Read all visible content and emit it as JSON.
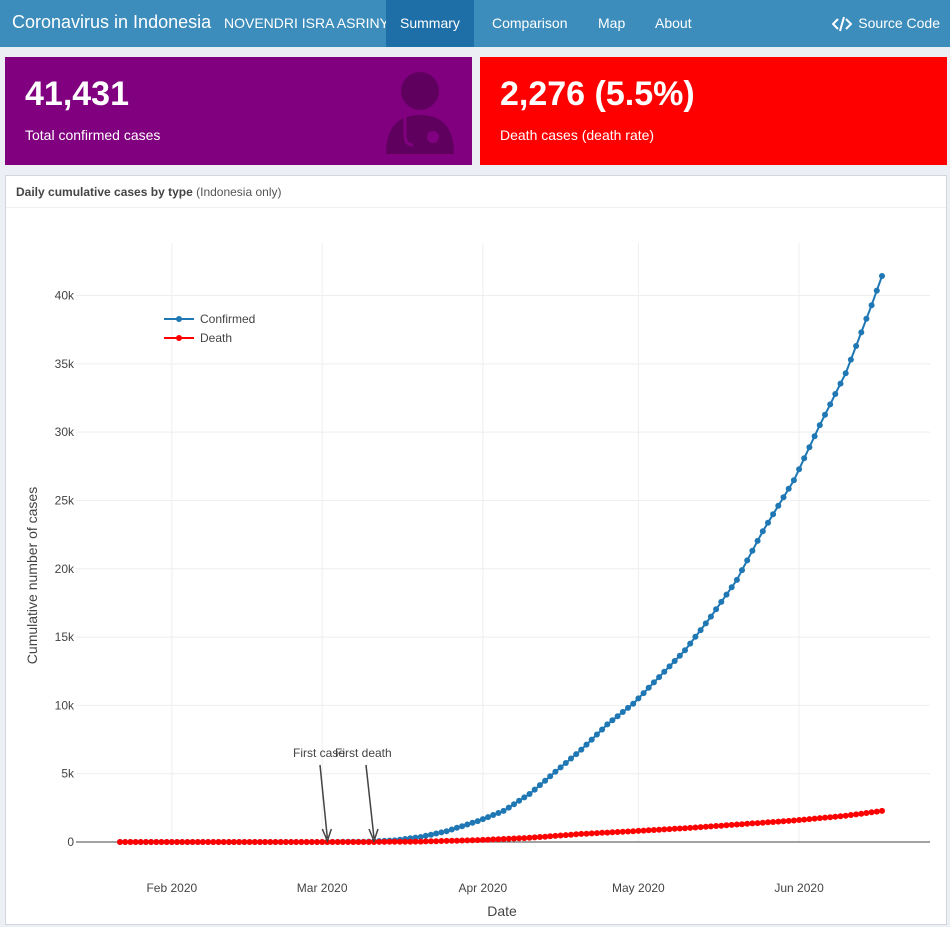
{
  "navbar": {
    "title": "Coronavirus in Indonesia",
    "author": "NOVENDRI ISRA ASRINY",
    "tabs": [
      {
        "label": "Summary",
        "active": true
      },
      {
        "label": "Comparison",
        "active": false
      },
      {
        "label": "Map",
        "active": false
      },
      {
        "label": "About",
        "active": false
      }
    ],
    "source_label": "Source Code",
    "source_icon": "code-icon"
  },
  "boxes": {
    "confirmed": {
      "value": "41,431",
      "label": "Total confirmed cases",
      "color": "#800080",
      "icon": "doctor-icon"
    },
    "death": {
      "value": "2,276 (5.5%)",
      "label": "Death cases (death rate)",
      "color": "#ff0000"
    }
  },
  "panel": {
    "title": "Daily cumulative cases by type",
    "title_note": "(Indonesia only)"
  },
  "chart_data": {
    "type": "line",
    "xlabel": "Date",
    "ylabel": "Cumulative number of cases",
    "x_ticks": [
      "Feb 2020",
      "Mar 2020",
      "Apr 2020",
      "May 2020",
      "Jun 2020"
    ],
    "y_ticks": [
      "0",
      "5k",
      "10k",
      "15k",
      "20k",
      "25k",
      "30k",
      "35k",
      "40k"
    ],
    "x_range": [
      "2020-01-22",
      "2020-06-17"
    ],
    "ylim": [
      0,
      41431
    ],
    "legend_position": "top-left",
    "series": [
      {
        "name": "Confirmed",
        "color": "#1f77b4",
        "points": [
          [
            "2020-01-22",
            0
          ],
          [
            "2020-03-01",
            0
          ],
          [
            "2020-03-02",
            2
          ],
          [
            "2020-03-10",
            27
          ],
          [
            "2020-03-15",
            117
          ],
          [
            "2020-03-20",
            369
          ],
          [
            "2020-03-25",
            790
          ],
          [
            "2020-03-31",
            1528
          ],
          [
            "2020-04-05",
            2273
          ],
          [
            "2020-04-10",
            3512
          ],
          [
            "2020-04-15",
            5136
          ],
          [
            "2020-04-20",
            6760
          ],
          [
            "2020-04-25",
            8607
          ],
          [
            "2020-04-30",
            10118
          ],
          [
            "2020-05-05",
            12071
          ],
          [
            "2020-05-10",
            14032
          ],
          [
            "2020-05-15",
            16496
          ],
          [
            "2020-05-20",
            19189
          ],
          [
            "2020-05-25",
            22750
          ],
          [
            "2020-05-31",
            26473
          ],
          [
            "2020-06-05",
            30514
          ],
          [
            "2020-06-10",
            34316
          ],
          [
            "2020-06-15",
            39294
          ],
          [
            "2020-06-17",
            41431
          ]
        ]
      },
      {
        "name": "Death",
        "color": "#ff0000",
        "points": [
          [
            "2020-01-22",
            0
          ],
          [
            "2020-03-10",
            0
          ],
          [
            "2020-03-11",
            1
          ],
          [
            "2020-03-20",
            32
          ],
          [
            "2020-03-31",
            136
          ],
          [
            "2020-04-10",
            306
          ],
          [
            "2020-04-20",
            590
          ],
          [
            "2020-04-30",
            792
          ],
          [
            "2020-05-10",
            1007
          ],
          [
            "2020-05-20",
            1278
          ],
          [
            "2020-05-31",
            1573
          ],
          [
            "2020-06-10",
            1923
          ],
          [
            "2020-06-17",
            2276
          ]
        ]
      }
    ],
    "annotations": [
      {
        "text": "First case",
        "date": "2020-03-02"
      },
      {
        "text": "First death",
        "date": "2020-03-11"
      }
    ]
  }
}
